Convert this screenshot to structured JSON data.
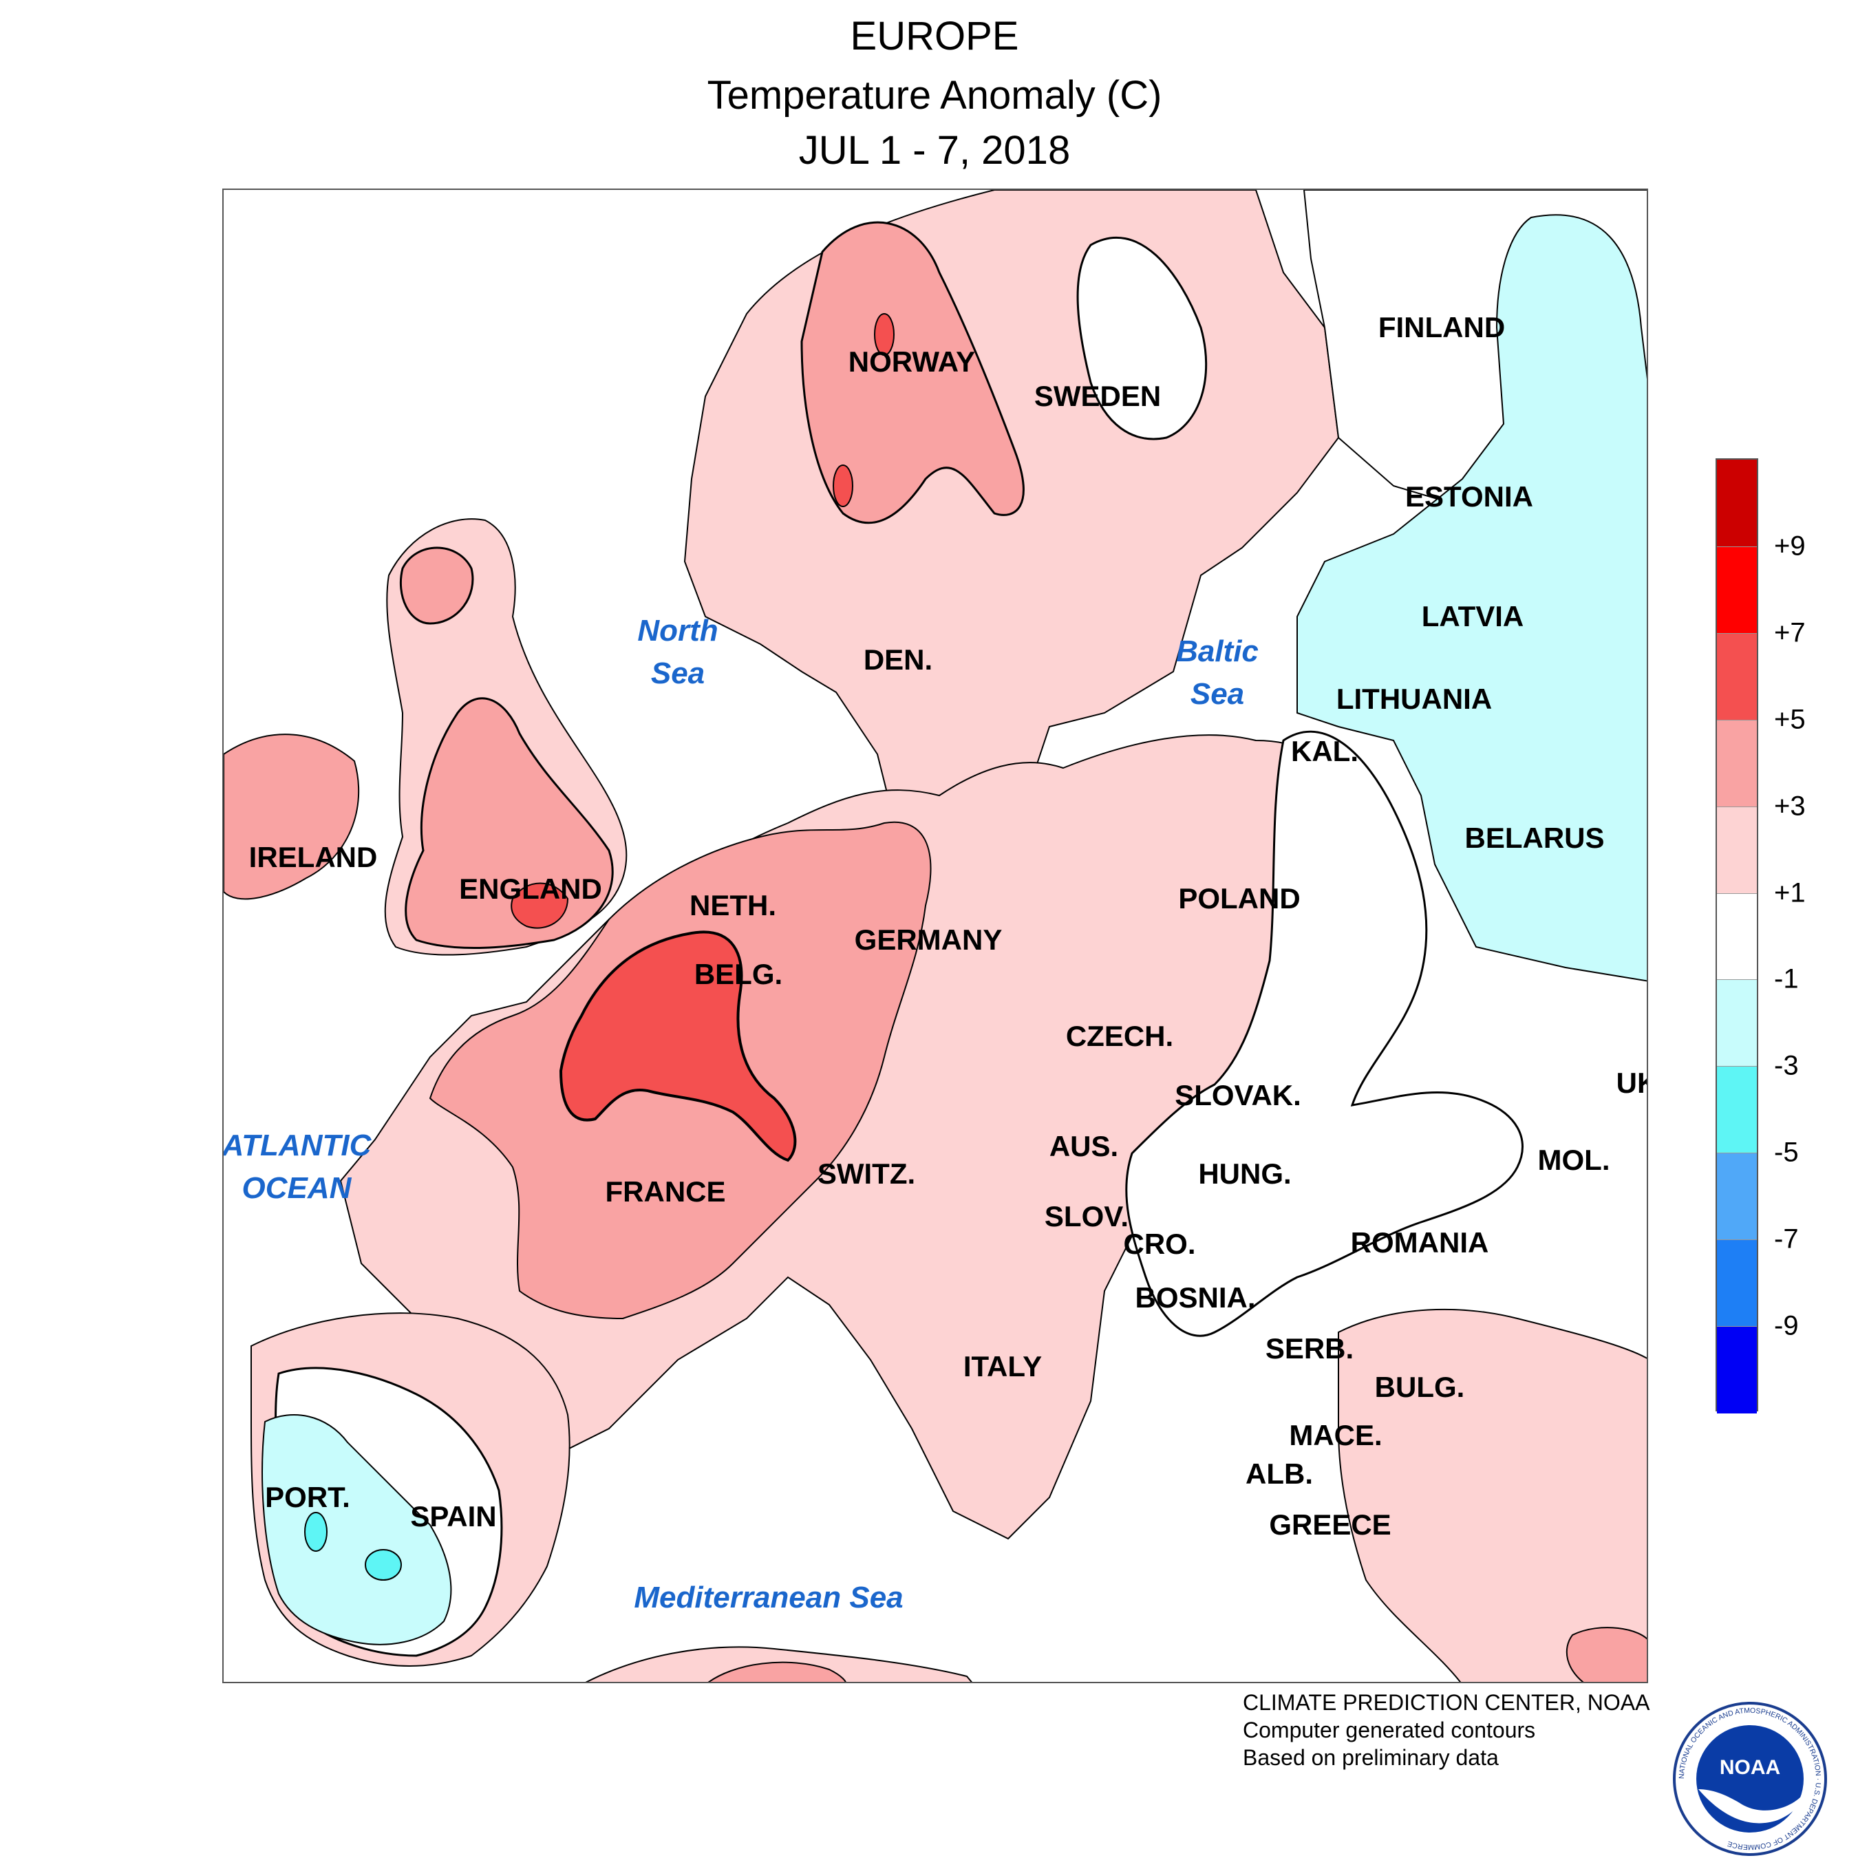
{
  "title": {
    "line1": "EUROPE",
    "line2": "Temperature Anomaly (C)",
    "line3": "JUL 1 - 7, 2018"
  },
  "map": {
    "countries": {
      "norway": "NORWAY",
      "sweden": "SWEDEN",
      "finland": "FINLAND",
      "estonia": "ESTONIA",
      "latvia": "LATVIA",
      "lithuania": "LITHUANIA",
      "kaliningrad": "KAL.",
      "belarus": "BELARUS",
      "ireland": "IRELAND",
      "england": "ENGLAND",
      "denmark": "DEN.",
      "netherlands": "NETH.",
      "belgium": "BELG.",
      "germany": "GERMANY",
      "poland": "POLAND",
      "czech": "CZECH.",
      "slovakia": "SLOVAK.",
      "ukraine": "UK",
      "moldova": "MOL.",
      "hungary": "HUNG.",
      "romania": "ROMANIA",
      "austria": "AUS.",
      "switzerland": "SWITZ.",
      "france": "FRANCE",
      "slovenia": "SLOV.",
      "croatia": "CRO.",
      "bosnia": "BOSNIA.",
      "serbia": "SERB.",
      "bulgaria": "BULG.",
      "macedonia": "MACE.",
      "albania": "ALB.",
      "greece": "GREECE",
      "italy": "ITALY",
      "portugal": "PORT.",
      "spain": "SPAIN"
    },
    "seas": {
      "north_sea_1": "North",
      "north_sea_2": "Sea",
      "baltic_sea_1": "Baltic",
      "baltic_sea_2": "Sea",
      "atlantic_1": "ATLANTIC",
      "atlantic_2": "OCEAN",
      "mediterranean": "Mediterranean Sea"
    },
    "anomaly_colors": {
      "plus_1_3": "#fdd3d3",
      "plus_3_5": "#f9a3a3",
      "plus_5_7": "#f45050",
      "minus_1_3": "#c8fcfc",
      "minus_3_5": "#5ef5f5"
    }
  },
  "legend": {
    "colors": [
      "#cc0000",
      "#ff0000",
      "#f45050",
      "#f9a3a3",
      "#fdd3d3",
      "#ffffff",
      "#c8fcfc",
      "#5ef5f5",
      "#50a8f8",
      "#1e7ff5",
      "#0000f5"
    ],
    "ticks": [
      "+9",
      "+7",
      "+5",
      "+3",
      "+1",
      "-1",
      "-3",
      "-5",
      "-7",
      "-9"
    ]
  },
  "footer": {
    "line1": "CLIMATE PREDICTION CENTER, NOAA",
    "line2": "Computer generated contours",
    "line3": "Based on preliminary data"
  },
  "logo": {
    "wordmark": "NOAA",
    "ring_text": "NATIONAL OCEANIC AND ATMOSPHERIC ADMINISTRATION · U.S. DEPARTMENT OF COMMERCE"
  }
}
